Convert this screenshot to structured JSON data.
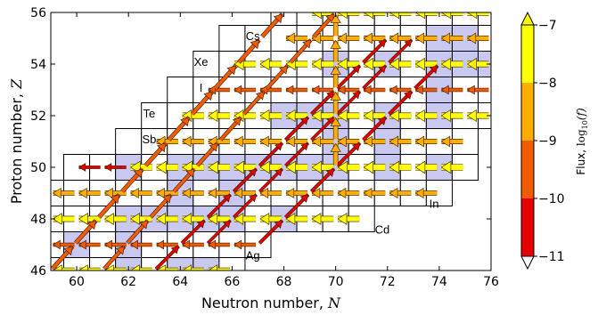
{
  "chart_data": {
    "type": "flux-network on nuclide chart",
    "xlabel_text": "Neutron number, ",
    "xlabel_var": "N",
    "ylabel_text": "Proton number, ",
    "ylabel_var": "Z",
    "xlim": [
      59,
      76
    ],
    "ylim": [
      46,
      56
    ],
    "xticks": [
      60,
      62,
      64,
      66,
      68,
      70,
      72,
      74,
      76
    ],
    "yticks": [
      46,
      48,
      50,
      52,
      54,
      56
    ],
    "element_labels": [
      {
        "text": "Cs",
        "N": 66.8,
        "Z": 55.1
      },
      {
        "text": "Xe",
        "N": 64.8,
        "Z": 54.1
      },
      {
        "text": "I",
        "N": 64.8,
        "Z": 53.1
      },
      {
        "text": "Te",
        "N": 62.8,
        "Z": 52.1
      },
      {
        "text": "Sb",
        "N": 62.8,
        "Z": 51.1
      },
      {
        "text": "In",
        "N": 73.8,
        "Z": 48.6
      },
      {
        "text": "Cd",
        "N": 71.8,
        "Z": 47.6
      },
      {
        "text": "Ag",
        "N": 66.8,
        "Z": 46.6
      }
    ],
    "isotope_ranges": [
      {
        "Z": 46,
        "N": [
          59,
          66
        ]
      },
      {
        "Z": 47,
        "N": [
          59,
          67
        ]
      },
      {
        "Z": 48,
        "N": [
          59,
          71
        ]
      },
      {
        "Z": 49,
        "N": [
          59,
          74
        ]
      },
      {
        "Z": 50,
        "N": [
          60,
          75
        ]
      },
      {
        "Z": 51,
        "N": [
          62,
          75
        ]
      },
      {
        "Z": 52,
        "N": [
          63,
          76
        ]
      },
      {
        "Z": 53,
        "N": [
          64,
          76
        ]
      },
      {
        "Z": 54,
        "N": [
          65,
          76
        ]
      },
      {
        "Z": 55,
        "N": [
          66,
          76
        ]
      },
      {
        "Z": 56,
        "N": [
          68,
          76
        ]
      }
    ],
    "stable": [
      [
        62,
        46
      ],
      [
        64,
        46
      ],
      [
        65,
        46
      ],
      [
        60,
        47
      ],
      [
        62,
        47
      ],
      [
        62,
        48
      ],
      [
        63,
        48
      ],
      [
        64,
        48
      ],
      [
        65,
        48
      ],
      [
        66,
        48
      ],
      [
        68,
        48
      ],
      [
        64,
        49
      ],
      [
        66,
        49
      ],
      [
        62,
        50
      ],
      [
        64,
        50
      ],
      [
        65,
        50
      ],
      [
        66,
        50
      ],
      [
        67,
        50
      ],
      [
        68,
        50
      ],
      [
        69,
        50
      ],
      [
        70,
        50
      ],
      [
        72,
        50
      ],
      [
        74,
        50
      ],
      [
        70,
        51
      ],
      [
        72,
        51
      ],
      [
        68,
        52
      ],
      [
        69,
        52
      ],
      [
        70,
        52
      ],
      [
        72,
        52
      ],
      [
        74,
        52
      ],
      [
        74,
        53
      ],
      [
        70,
        54
      ],
      [
        72,
        54
      ],
      [
        74,
        54
      ],
      [
        75,
        54
      ],
      [
        76,
        54
      ],
      [
        74,
        55
      ],
      [
        75,
        55
      ]
    ],
    "flux_paths": [
      {
        "type": "horizontal",
        "Z": 56,
        "N_from": 76,
        "N_to": 69,
        "log10_flux": -7.3
      },
      {
        "type": "horizontal",
        "Z": 55,
        "N_from": 76,
        "N_to": 68,
        "log10_flux": -8.3
      },
      {
        "type": "horizontal",
        "Z": 54,
        "N_from": 76,
        "N_to": 66,
        "log10_flux": -7.5
      },
      {
        "type": "horizontal",
        "Z": 53,
        "N_from": 76,
        "N_to": 65,
        "log10_flux": -9.6
      },
      {
        "type": "horizontal",
        "Z": 52,
        "N_from": 76,
        "N_to": 64,
        "log10_flux": -7.6
      },
      {
        "type": "horizontal",
        "Z": 51,
        "N_from": 75,
        "N_to": 63,
        "log10_flux": -8.3
      },
      {
        "type": "horizontal",
        "Z": 50,
        "N_from": 75,
        "N_to": 62,
        "log10_flux": -7.2
      },
      {
        "type": "horizontal",
        "Z": 50,
        "N_from": 62,
        "N_to": 60,
        "log10_flux": -10.2
      },
      {
        "type": "horizontal",
        "Z": 49,
        "N_from": 74,
        "N_to": 59,
        "log10_flux": -8.8
      },
      {
        "type": "horizontal",
        "Z": 48,
        "N_from": 71,
        "N_to": 59,
        "log10_flux": -7.8
      },
      {
        "type": "horizontal",
        "Z": 47,
        "N_from": 67,
        "N_to": 59,
        "log10_flux": -9.6
      },
      {
        "type": "horizontal",
        "Z": 46,
        "N_from": 66,
        "N_to": 59,
        "log10_flux": -7.9
      },
      {
        "type": "diagonal",
        "N_from": 59,
        "Z_from": 46,
        "N_to": 68,
        "Z_to": 56,
        "log10_flux": -9.2
      },
      {
        "type": "diagonal",
        "N_from": 61,
        "Z_from": 46,
        "N_to": 70,
        "Z_to": 56,
        "log10_flux": -9.6
      },
      {
        "type": "diagonal",
        "N_from": 63,
        "Z_from": 46,
        "N_to": 72,
        "Z_to": 55,
        "log10_flux": -10.2
      },
      {
        "type": "diagonal",
        "N_from": 65,
        "Z_from": 47,
        "N_to": 73,
        "Z_to": 55,
        "log10_flux": -10.4
      },
      {
        "type": "diagonal",
        "N_from": 67,
        "Z_from": 47,
        "N_to": 74,
        "Z_to": 54,
        "log10_flux": -10.0
      },
      {
        "type": "vertical",
        "N": 70,
        "Z_from": 50,
        "Z_to": 56,
        "log10_flux": -8.7
      }
    ],
    "colorbar": {
      "label_prefix": "Flux, ",
      "label_math": "log",
      "label_sub": "10",
      "label_var": "(f)",
      "ticks": [
        -7,
        -8,
        -9,
        -10,
        -11
      ],
      "range": [
        -11,
        -7
      ],
      "extend": "both",
      "colors": [
        {
          "from": -11,
          "to": -10,
          "color": "#e60000"
        },
        {
          "from": -10,
          "to": -9,
          "color": "#f25a00"
        },
        {
          "from": -9,
          "to": -8,
          "color": "#fdae00"
        },
        {
          "from": -8,
          "to": -7,
          "color": "#ffff00"
        }
      ]
    },
    "colors": {
      "stable_fill": "#c8c8f0",
      "grid": "#000000"
    }
  }
}
